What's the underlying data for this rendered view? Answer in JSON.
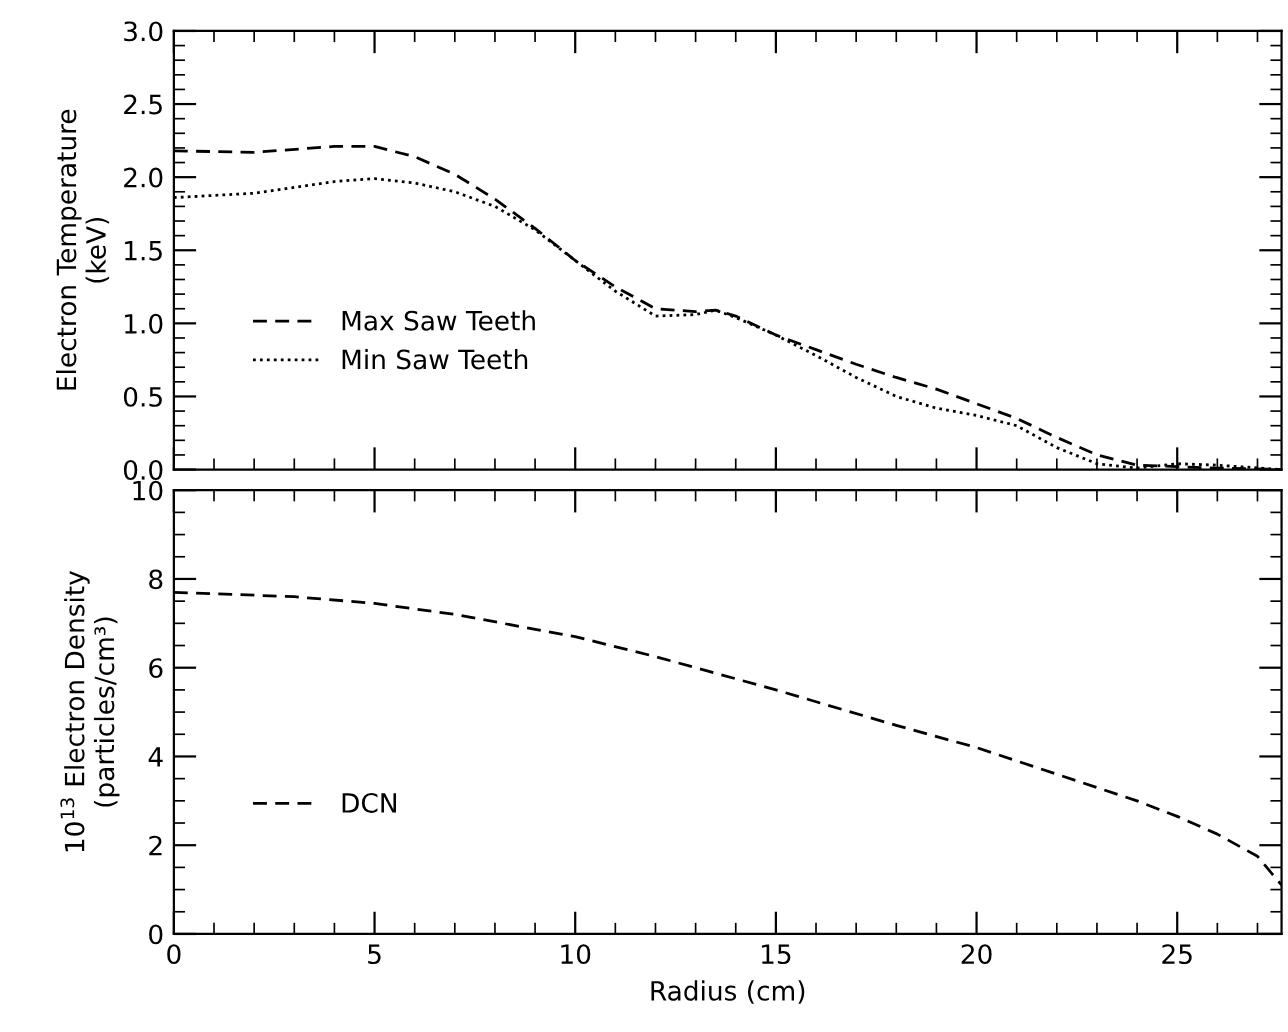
{
  "chart_data": [
    {
      "type": "line",
      "ylabel": "Electron Temperature\n(keV)",
      "xlim": [
        0,
        27.6
      ],
      "xticks": [
        0,
        5,
        10,
        15,
        20,
        25
      ],
      "ylim": [
        0,
        3.0
      ],
      "yticks": [
        {
          "value": 0,
          "label": "0.0"
        },
        {
          "value": 0.5,
          "label": "0.5"
        },
        {
          "value": 1.0,
          "label": "1.0"
        },
        {
          "value": 1.5,
          "label": "1.5"
        },
        {
          "value": 2.0,
          "label": "2.0"
        },
        {
          "value": 2.5,
          "label": "2.5"
        },
        {
          "value": 3.0,
          "label": "3.0"
        }
      ],
      "tick_labels": "y",
      "legend": "left",
      "grid": false,
      "series": [
        {
          "name": "Max Saw Teeth",
          "color": "#000000",
          "line_style": "dashed",
          "x": [
            0,
            2,
            4,
            5,
            6,
            7,
            8,
            9,
            10,
            11,
            12,
            13,
            13.5,
            14,
            15,
            16,
            17,
            18,
            19,
            20,
            21,
            22,
            23,
            24,
            25,
            26,
            27.6
          ],
          "values": [
            2.18,
            2.17,
            2.21,
            2.21,
            2.14,
            2.02,
            1.85,
            1.65,
            1.43,
            1.25,
            1.1,
            1.08,
            1.09,
            1.05,
            0.92,
            0.82,
            0.72,
            0.63,
            0.55,
            0.45,
            0.35,
            0.22,
            0.1,
            0.03,
            0.02,
            0.01,
            0.0
          ]
        },
        {
          "name": "Min Saw Teeth",
          "color": "#000000",
          "line_style": "dotted",
          "x": [
            0,
            2,
            4,
            5,
            6,
            7,
            8,
            9,
            10,
            11,
            12,
            13,
            13.5,
            14,
            15,
            16,
            17,
            18,
            19,
            20,
            21,
            22,
            23,
            24,
            25,
            26,
            27.6
          ],
          "values": [
            1.86,
            1.89,
            1.97,
            1.99,
            1.96,
            1.9,
            1.8,
            1.64,
            1.43,
            1.22,
            1.05,
            1.06,
            1.09,
            1.04,
            0.92,
            0.78,
            0.63,
            0.5,
            0.42,
            0.37,
            0.3,
            0.15,
            0.04,
            0.01,
            0.04,
            0.03,
            0.0
          ]
        }
      ]
    },
    {
      "type": "line",
      "xlabel": "Radius (cm)",
      "ylabel": "10$^{13}$ Electron Density\n(particles/cm³)",
      "xlim": [
        0,
        27.6
      ],
      "xticks": [
        0,
        5,
        10,
        15,
        20,
        25
      ],
      "ylim": [
        0,
        10
      ],
      "yticks": [
        0,
        2,
        4,
        6,
        8,
        10
      ],
      "legend": "left",
      "grid": false,
      "series": [
        {
          "name": "DCN",
          "color": "#000000",
          "line_style": "dashed",
          "x": [
            0,
            3,
            5,
            7,
            10,
            12,
            15,
            18,
            20,
            22,
            24,
            25,
            26,
            27,
            27.6
          ],
          "values": [
            7.7,
            7.6,
            7.45,
            7.2,
            6.7,
            6.25,
            5.5,
            4.7,
            4.2,
            3.6,
            3.0,
            2.65,
            2.25,
            1.75,
            1.1
          ]
        }
      ]
    }
  ]
}
